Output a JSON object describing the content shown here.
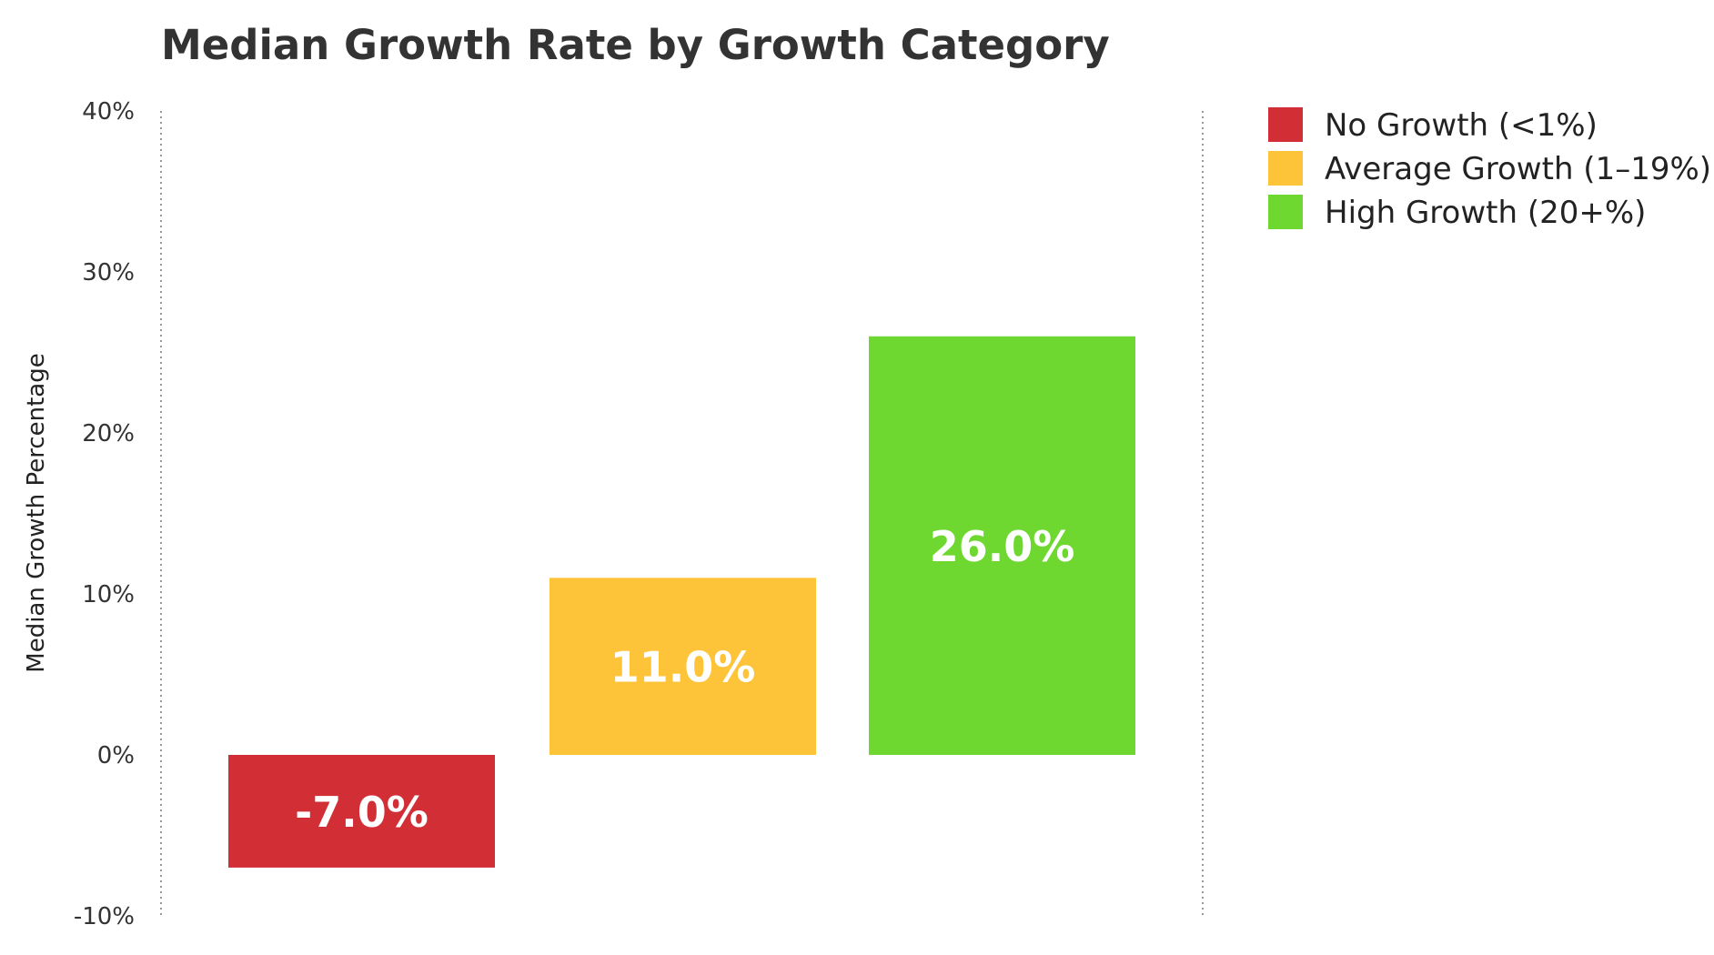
{
  "chart_data": {
    "type": "bar",
    "title": "Median Growth Rate by Growth Category",
    "xlabel": "",
    "ylabel": "Median Growth Percentage",
    "ylim": [
      -10,
      40
    ],
    "yticks": [
      -10,
      0,
      10,
      20,
      30,
      40
    ],
    "ytick_labels": [
      "-10%",
      "0%",
      "10%",
      "20%",
      "30%",
      "40%"
    ],
    "grid": false,
    "legend_position": "top-right",
    "categories": [
      "No Growth (<1%)",
      "Average Growth (1–19%)",
      "High Growth (20+%)"
    ],
    "values": [
      -7.0,
      11.0,
      26.0
    ],
    "data_labels": [
      "-7.0%",
      "11.0%",
      "26.0%"
    ],
    "colors": [
      "#d12e36",
      "#fdc43a",
      "#6ed830"
    ]
  }
}
